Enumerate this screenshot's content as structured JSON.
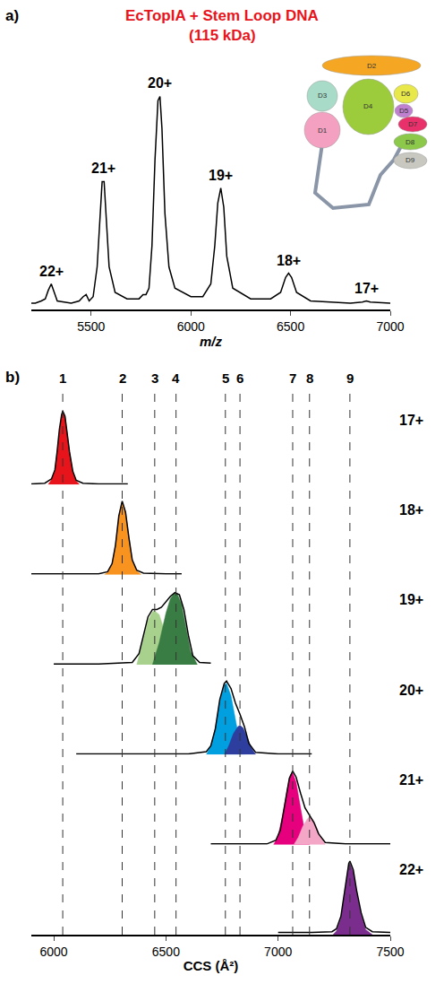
{
  "chart_data": [
    {
      "type": "line",
      "panel": "a)",
      "title": "EcTopIA + Stem Loop DNA",
      "subtitle": "(115 kDa)",
      "x_label": "m/z",
      "color": "#000000",
      "x": [
        5200,
        5220,
        5250,
        5270,
        5285,
        5300,
        5315,
        5330,
        5400,
        5440,
        5460,
        5475,
        5490,
        5510,
        5530,
        5545,
        5555,
        5565,
        5575,
        5590,
        5620,
        5680,
        5740,
        5760,
        5775,
        5790,
        5805,
        5820,
        5835,
        5845,
        5855,
        5870,
        5890,
        5920,
        6000,
        6060,
        6100,
        6120,
        6135,
        6150,
        6165,
        6180,
        6210,
        6300,
        6400,
        6450,
        6475,
        6490,
        6505,
        6530,
        6600,
        6800,
        6860,
        6880,
        6900,
        7000
      ],
      "values": [
        0.03,
        0.03,
        0.04,
        0.05,
        0.09,
        0.12,
        0.08,
        0.04,
        0.03,
        0.04,
        0.06,
        0.07,
        0.04,
        0.06,
        0.2,
        0.45,
        0.6,
        0.6,
        0.45,
        0.2,
        0.08,
        0.05,
        0.05,
        0.07,
        0.07,
        0.1,
        0.3,
        0.7,
        0.98,
        1.0,
        0.85,
        0.45,
        0.2,
        0.1,
        0.06,
        0.06,
        0.12,
        0.3,
        0.5,
        0.57,
        0.48,
        0.25,
        0.1,
        0.05,
        0.05,
        0.08,
        0.15,
        0.17,
        0.15,
        0.08,
        0.04,
        0.03,
        0.035,
        0.04,
        0.035,
        0.03
      ],
      "xlim": [
        5200,
        7000
      ],
      "xticks": [
        5500,
        6000,
        6500,
        7000
      ],
      "ylim": [
        0,
        1.2
      ],
      "tick_labels": "x",
      "annotations": [
        {
          "text": "22+",
          "x": 5300,
          "y": 0.12
        },
        {
          "text": "21+",
          "x": 5560,
          "y": 0.6
        },
        {
          "text": "20+",
          "x": 5845,
          "y": 1.0
        },
        {
          "text": "19+",
          "x": 6150,
          "y": 0.57
        },
        {
          "text": "18+",
          "x": 6490,
          "y": 0.17
        },
        {
          "text": "17+",
          "x": 6880,
          "y": 0.04
        }
      ],
      "inset": [
        {
          "label": "D1",
          "color": "#f4a0c0"
        },
        {
          "label": "D2",
          "color": "#f5a623"
        },
        {
          "label": "D3",
          "color": "#a8dcc8"
        },
        {
          "label": "D4",
          "color": "#9ccc3c"
        },
        {
          "label": "D5",
          "color": "#c080d0"
        },
        {
          "label": "D6",
          "color": "#e8e84a"
        },
        {
          "label": "D7",
          "color": "#e8306a"
        },
        {
          "label": "D8",
          "color": "#8cc84a"
        },
        {
          "label": "D9",
          "color": "#c8c8c0"
        }
      ]
    },
    {
      "type": "area",
      "panel": "b)",
      "x_label": "CCS (Å²)",
      "color": "#000000",
      "xlim": [
        5900,
        7500
      ],
      "xticks": [
        6000,
        6500,
        7000,
        7500
      ],
      "ylim": [
        0,
        1.15
      ],
      "tick_labels": "x",
      "line_style": "dashed",
      "reference_lines": [
        {
          "label": "1",
          "value": 6040
        },
        {
          "label": "2",
          "value": 6305
        },
        {
          "label": "3",
          "value": 6450
        },
        {
          "label": "4",
          "value": 6545
        },
        {
          "label": "5",
          "value": 6765
        },
        {
          "label": "6",
          "value": 6830
        },
        {
          "label": "7",
          "value": 7065
        },
        {
          "label": "8",
          "value": 7140
        },
        {
          "label": "9",
          "value": 7320
        }
      ],
      "series": [
        {
          "name": "17+",
          "x": [
            5900,
            5960,
            5990,
            6005,
            6015,
            6025,
            6035,
            6040,
            6050,
            6060,
            6070,
            6085,
            6100,
            6130,
            6200,
            6330
          ],
          "values": [
            0.01,
            0.02,
            0.08,
            0.2,
            0.45,
            0.75,
            0.95,
            1.0,
            0.93,
            0.7,
            0.45,
            0.18,
            0.06,
            0.02,
            0.01,
            0.01
          ],
          "components": [
            {
              "color": "#e8141b",
              "x": [
                5975,
                5990,
                6005,
                6015,
                6025,
                6035,
                6040,
                6050,
                6060,
                6070,
                6085,
                6100,
                6115
              ],
              "values": [
                0,
                0.07,
                0.19,
                0.44,
                0.74,
                0.94,
                0.99,
                0.92,
                0.69,
                0.44,
                0.17,
                0.05,
                0
              ]
            }
          ]
        },
        {
          "name": "18+",
          "x": [
            5900,
            6000,
            6200,
            6240,
            6260,
            6275,
            6290,
            6305,
            6320,
            6335,
            6350,
            6370,
            6400,
            6500,
            6570
          ],
          "values": [
            0.01,
            0.01,
            0.01,
            0.04,
            0.15,
            0.4,
            0.8,
            1.0,
            0.85,
            0.5,
            0.2,
            0.06,
            0.02,
            0.01,
            0.01
          ],
          "components": [
            {
              "color": "#f7931e",
              "x": [
                6225,
                6240,
                6260,
                6275,
                6290,
                6305,
                6320,
                6335,
                6350,
                6370,
                6390
              ],
              "values": [
                0,
                0.03,
                0.14,
                0.39,
                0.79,
                0.99,
                0.84,
                0.49,
                0.19,
                0.05,
                0
              ]
            }
          ]
        },
        {
          "name": "19+",
          "x": [
            6000,
            6200,
            6350,
            6380,
            6400,
            6420,
            6440,
            6460,
            6480,
            6500,
            6520,
            6540,
            6560,
            6580,
            6600,
            6620,
            6650,
            6700
          ],
          "values": [
            0.01,
            0.01,
            0.03,
            0.15,
            0.4,
            0.65,
            0.75,
            0.75,
            0.78,
            0.85,
            0.93,
            0.98,
            0.95,
            0.75,
            0.4,
            0.12,
            0.03,
            0.02
          ],
          "components": [
            {
              "color": "#a9d18e",
              "x": [
                6370,
                6400,
                6420,
                6440,
                6450,
                6470,
                6490,
                6510,
                6530,
                6550
              ],
              "values": [
                0,
                0.35,
                0.6,
                0.72,
                0.73,
                0.68,
                0.5,
                0.3,
                0.12,
                0
              ]
            },
            {
              "color": "#3a7d44",
              "x": [
                6440,
                6470,
                6500,
                6520,
                6540,
                6550,
                6570,
                6590,
                6610,
                6640
              ],
              "values": [
                0,
                0.3,
                0.7,
                0.9,
                0.98,
                0.97,
                0.82,
                0.5,
                0.18,
                0
              ]
            }
          ]
        },
        {
          "name": "20+",
          "x": [
            6100,
            6600,
            6680,
            6700,
            6720,
            6740,
            6760,
            6770,
            6790,
            6810,
            6830,
            6850,
            6870,
            6900,
            7000,
            7150
          ],
          "values": [
            0.01,
            0.01,
            0.04,
            0.12,
            0.35,
            0.75,
            0.97,
            1.0,
            0.9,
            0.7,
            0.55,
            0.38,
            0.15,
            0.03,
            0.01,
            0.01
          ],
          "components": [
            {
              "color": "#00a0e0",
              "x": [
                6680,
                6700,
                6720,
                6740,
                6760,
                6770,
                6790,
                6810,
                6830,
                6850
              ],
              "values": [
                0,
                0.12,
                0.35,
                0.72,
                0.95,
                0.97,
                0.8,
                0.45,
                0.15,
                0
              ]
            },
            {
              "color": "#2e3e9e",
              "x": [
                6760,
                6780,
                6800,
                6820,
                6830,
                6845,
                6860,
                6880,
                6900
              ],
              "values": [
                0,
                0.12,
                0.28,
                0.38,
                0.4,
                0.36,
                0.25,
                0.1,
                0
              ]
            }
          ]
        },
        {
          "name": "21+",
          "x": [
            6700,
            6950,
            6990,
            7010,
            7030,
            7050,
            7065,
            7080,
            7100,
            7120,
            7140,
            7160,
            7180,
            7210,
            7300,
            7500
          ],
          "values": [
            0.01,
            0.01,
            0.06,
            0.2,
            0.55,
            0.9,
            1.0,
            0.92,
            0.7,
            0.5,
            0.4,
            0.3,
            0.15,
            0.03,
            0.01,
            0.01
          ],
          "components": [
            {
              "color": "#e6007e",
              "x": [
                6980,
                7000,
                7020,
                7040,
                7055,
                7065,
                7080,
                7100,
                7120,
                7140
              ],
              "values": [
                0,
                0.12,
                0.4,
                0.75,
                0.95,
                0.98,
                0.85,
                0.5,
                0.15,
                0
              ]
            },
            {
              "color": "#f4a6c6",
              "x": [
                7070,
                7090,
                7110,
                7130,
                7140,
                7155,
                7170,
                7190,
                7210
              ],
              "values": [
                0,
                0.1,
                0.25,
                0.35,
                0.38,
                0.34,
                0.25,
                0.1,
                0
              ]
            }
          ]
        },
        {
          "name": "22+",
          "x": [
            7000,
            7150,
            7240,
            7260,
            7280,
            7300,
            7315,
            7320,
            7335,
            7350,
            7370,
            7390,
            7420,
            7500
          ],
          "values": [
            0.03,
            0.03,
            0.04,
            0.08,
            0.25,
            0.7,
            0.97,
            1.0,
            0.88,
            0.6,
            0.3,
            0.1,
            0.04,
            0.03
          ],
          "components": [
            {
              "color": "#7b2d8e",
              "x": [
                7245,
                7260,
                7280,
                7300,
                7315,
                7320,
                7335,
                7350,
                7370,
                7390,
                7420
              ],
              "values": [
                0,
                0.05,
                0.22,
                0.67,
                0.94,
                0.97,
                0.85,
                0.57,
                0.27,
                0.07,
                0
              ]
            }
          ]
        }
      ]
    }
  ]
}
